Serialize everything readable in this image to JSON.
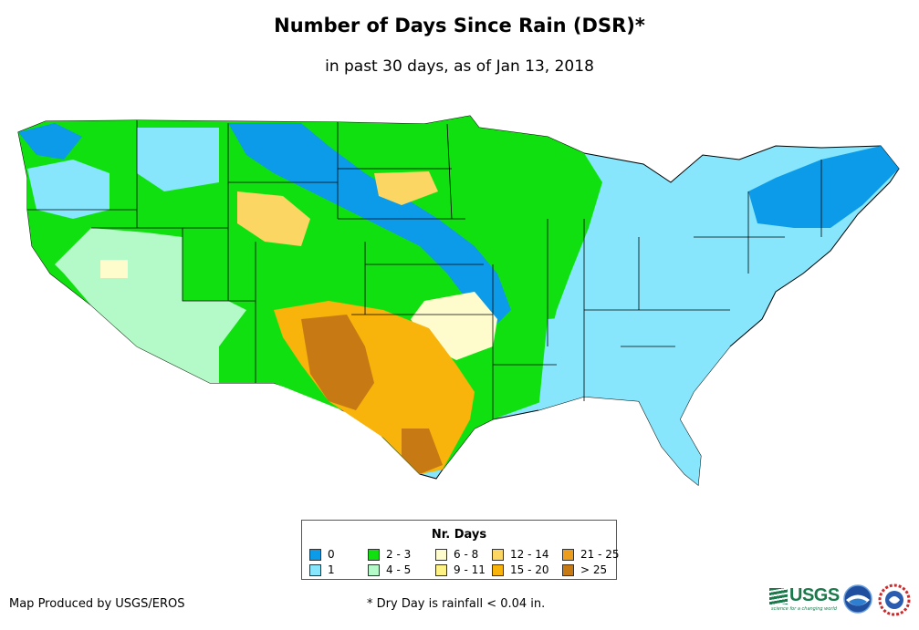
{
  "title": "Number of Days Since Rain (DSR)*",
  "subtitle": "in past 30 days, as of Jan 13, 2018",
  "legend": {
    "title": "Nr. Days",
    "items": [
      {
        "label": "0",
        "color": "#0b9be8"
      },
      {
        "label": "1",
        "color": "#87e6fb"
      },
      {
        "label": "2 - 3",
        "color": "#11e010"
      },
      {
        "label": "4 - 5",
        "color": "#b4fac8"
      },
      {
        "label": "6 - 8",
        "color": "#fefccc"
      },
      {
        "label": "9 - 11",
        "color": "#fdf283"
      },
      {
        "label": "12 - 14",
        "color": "#fcd662"
      },
      {
        "label": "15 - 20",
        "color": "#f8b40a"
      },
      {
        "label": "21 - 25",
        "color": "#ec9d1c"
      },
      {
        "label": "> 25",
        "color": "#c77a13"
      }
    ]
  },
  "footer": {
    "producer": "Map Produced by USGS/EROS",
    "note": "* Dry Day is rainfall < 0.04 in."
  },
  "logos": {
    "usgs": "USGS",
    "usgs_tagline": "science for a changing world",
    "noaa": "noaa-logo",
    "nws": "nws-logo"
  }
}
